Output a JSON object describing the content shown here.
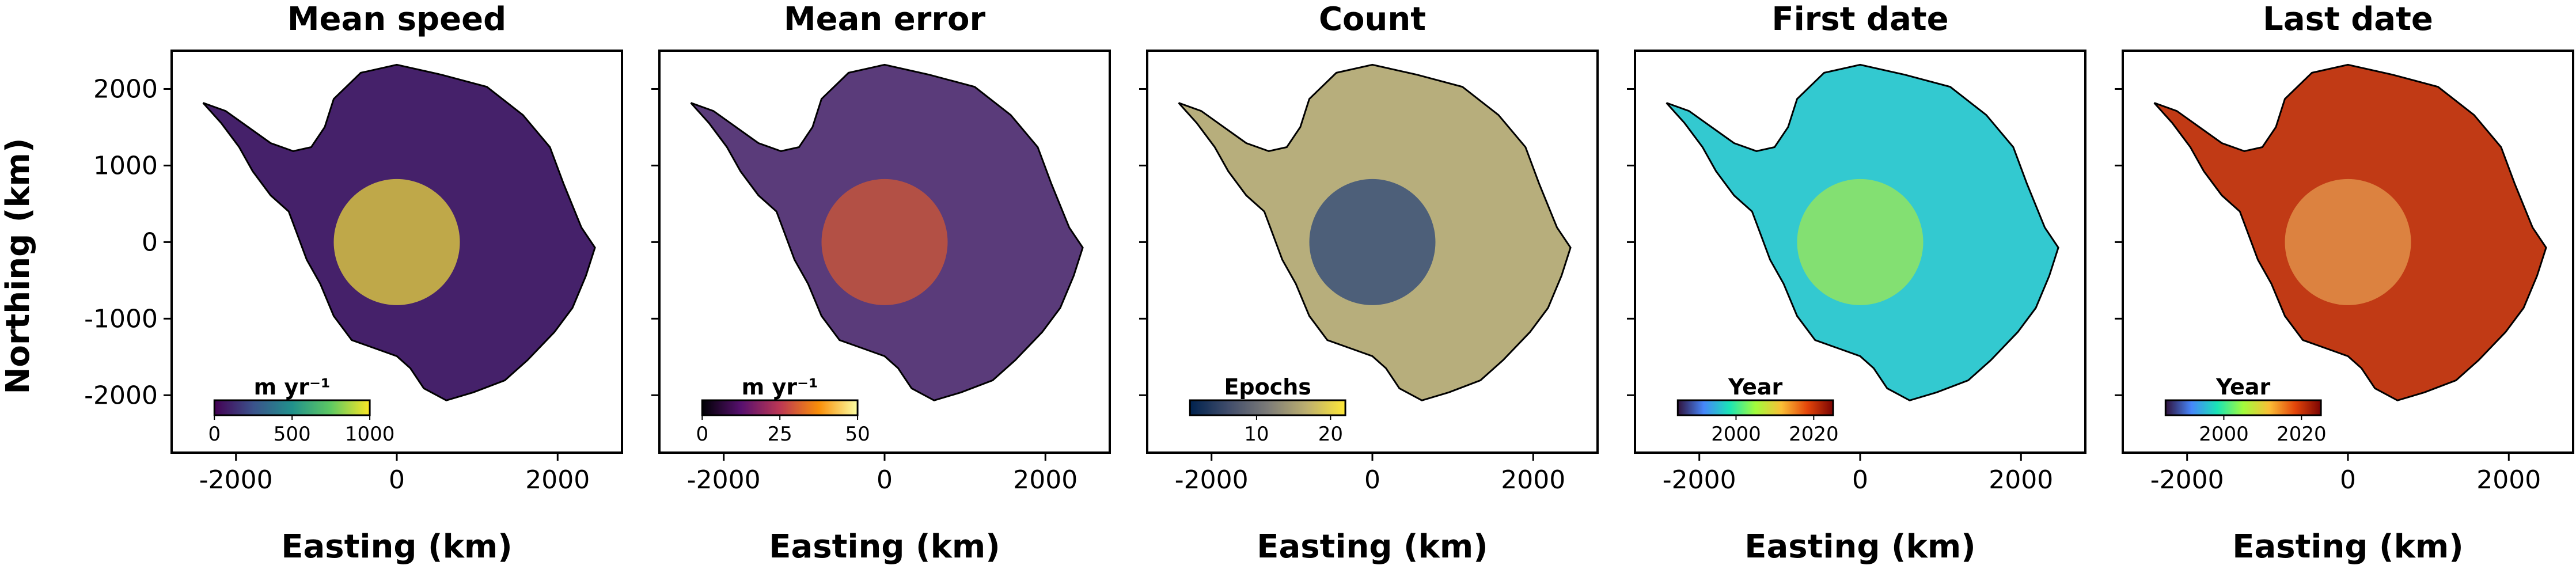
{
  "figure": {
    "ylabel": "Northing (km)",
    "xlabel": "Easting (km)"
  },
  "chart_data": [
    {
      "type": "heatmap",
      "title": "Mean speed",
      "xlabel": "Easting (km)",
      "ylabel": "Northing (km)",
      "xlim": [
        -2800,
        2800
      ],
      "ylim": [
        -2750,
        2500
      ],
      "xticks": [
        -2000,
        0,
        2000
      ],
      "xtick_labels": [
        "-2000",
        "0",
        "2000"
      ],
      "yticks": [
        2000,
        1000,
        0,
        -1000,
        -2000
      ],
      "ytick_labels": [
        "2000",
        "1000",
        "0",
        "-1000",
        "-2000"
      ],
      "colorbar": {
        "label": "m yr⁻¹",
        "range": [
          0,
          1000
        ],
        "ticks": [
          0,
          500,
          1000
        ],
        "tick_labels": [
          "0",
          "500",
          "1000"
        ],
        "colormap": "viridis"
      },
      "colors": {
        "background": "#45216a",
        "accent": "#f4e23c"
      }
    },
    {
      "type": "heatmap",
      "title": "Mean error",
      "xlabel": "Easting (km)",
      "xlim": [
        -2800,
        2800
      ],
      "ylim": [
        -2750,
        2500
      ],
      "xticks": [
        -2000,
        0,
        2000
      ],
      "xtick_labels": [
        "-2000",
        "0",
        "2000"
      ],
      "colorbar": {
        "label": "m yr⁻¹",
        "range": [
          0,
          50
        ],
        "ticks": [
          0,
          25,
          50
        ],
        "tick_labels": [
          "0",
          "25",
          "50"
        ],
        "colormap": "inferno"
      },
      "colors": {
        "background": "#5a3b7a",
        "accent": "#d85a2f"
      }
    },
    {
      "type": "heatmap",
      "title": "Count",
      "xlabel": "Easting (km)",
      "xlim": [
        -2800,
        2800
      ],
      "ylim": [
        -2750,
        2500
      ],
      "xticks": [
        -2000,
        0,
        2000
      ],
      "xtick_labels": [
        "-2000",
        "0",
        "2000"
      ],
      "colorbar": {
        "label": "Epochs",
        "range": [
          1,
          22
        ],
        "ticks": [
          10,
          20
        ],
        "tick_labels": [
          "10",
          "20"
        ],
        "colormap": "cividis"
      },
      "colors": {
        "background": "#b7ae7c",
        "accent": "#1f3d78"
      }
    },
    {
      "type": "heatmap",
      "title": "First date",
      "xlabel": "Easting (km)",
      "xlim": [
        -2800,
        2800
      ],
      "ylim": [
        -2750,
        2500
      ],
      "xticks": [
        -2000,
        0,
        2000
      ],
      "xtick_labels": [
        "-2000",
        "0",
        "2000"
      ],
      "colorbar": {
        "label": "Year",
        "range": [
          1985,
          2025
        ],
        "ticks": [
          2000,
          2020
        ],
        "tick_labels": [
          "2000",
          "2020"
        ],
        "colormap": "turbo"
      },
      "colors": {
        "background": "#33c9d0",
        "accent": "#a5e94a"
      }
    },
    {
      "type": "heatmap",
      "title": "Last date",
      "xlabel": "Easting (km)",
      "xlim": [
        -2800,
        2800
      ],
      "ylim": [
        -2750,
        2500
      ],
      "xticks": [
        -2000,
        0,
        2000
      ],
      "xtick_labels": [
        "-2000",
        "0",
        "2000"
      ],
      "colorbar": {
        "label": "Year",
        "range": [
          1985,
          2025
        ],
        "ticks": [
          2000,
          2020
        ],
        "tick_labels": [
          "2000",
          "2020"
        ],
        "colormap": "turbo"
      },
      "colors": {
        "background": "#c13a15",
        "accent": "#e7a152"
      }
    }
  ]
}
